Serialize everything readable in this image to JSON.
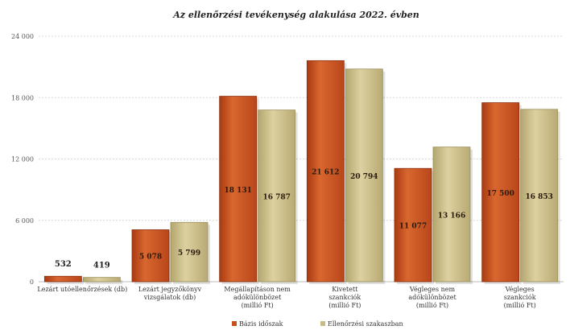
{
  "chart_data": {
    "type": "bar",
    "title": "Az ellenőrzési tevékenység alakulása 2022. évben",
    "categories": [
      [
        "Lezárt utóellenőrzések (db)"
      ],
      [
        "Lezárt jegyzőkönyv",
        "vizsgálatok (db)"
      ],
      [
        "Megállapításon nem",
        "adókülönbözet",
        "(millió Ft)"
      ],
      [
        "Kivetett ",
        "szankciók",
        "(millió Ft)"
      ],
      [
        "Végleges nem",
        "adókülönbözet",
        "(millió Ft)"
      ],
      [
        "Végleges ",
        "szankciók",
        "(millió Ft)"
      ]
    ],
    "series": [
      {
        "name": "Bázis időszak",
        "values": [
          532,
          5078,
          18131,
          21612,
          11077,
          17500
        ],
        "labels": [
          "532",
          "5 078",
          "18 131",
          "21 612",
          "11 077",
          "17 500"
        ],
        "color": "#c8501e"
      },
      {
        "name": "Ellenőrzési szakaszban",
        "values": [
          419,
          5799,
          16787,
          20794,
          13166,
          16853
        ],
        "labels": [
          "419",
          "5 799",
          "16 787",
          "20 794",
          "13 166",
          "16 853"
        ],
        "color": "#c9bb86"
      }
    ],
    "ylim": [
      0,
      24000
    ],
    "yticks": [
      0,
      6000,
      12000,
      18000,
      24000
    ],
    "ytick_labels": [
      "0",
      "6 000",
      "12 000",
      "18 000",
      "24 000"
    ],
    "grid": true,
    "legend_position": "bottom"
  }
}
